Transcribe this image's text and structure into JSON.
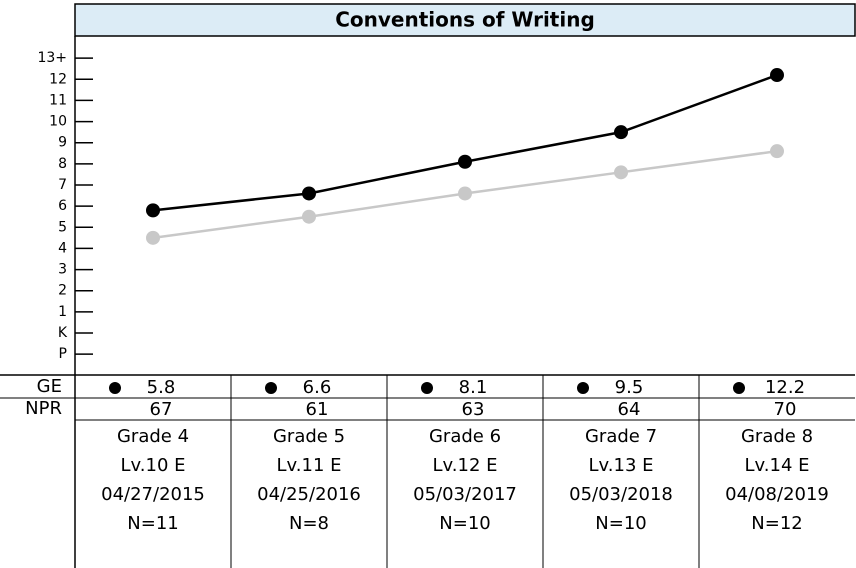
{
  "chart_data": {
    "type": "line",
    "title": "Conventions of Writing",
    "categories": [
      "Grade 4",
      "Grade 5",
      "Grade 6",
      "Grade 7",
      "Grade 8"
    ],
    "series": [
      {
        "color": "#000000",
        "values": [
          5.8,
          6.6,
          8.1,
          9.5,
          12.2
        ]
      },
      {
        "color": "#c8c8c8",
        "values": [
          4.5,
          5.5,
          6.6,
          7.6,
          8.6
        ]
      }
    ],
    "ylim": [
      -1.75,
      14
    ],
    "yticks": [
      {
        "value": -1,
        "label": "P"
      },
      {
        "value": 0,
        "label": "K"
      },
      1,
      2,
      3,
      4,
      5,
      6,
      7,
      8,
      9,
      10,
      11,
      12,
      {
        "value": 13,
        "label": "13+"
      }
    ],
    "row_labels": [
      "GE",
      "NPR"
    ],
    "npr": [
      67,
      61,
      63,
      64,
      70
    ],
    "levels": [
      "Lv.10 E",
      "Lv.11 E",
      "Lv.12 E",
      "Lv.13 E",
      "Lv.14 E"
    ],
    "dates": [
      "04/27/2015",
      "04/25/2016",
      "05/03/2017",
      "05/03/2018",
      "04/08/2019"
    ],
    "counts": [
      "N=11",
      "N=8",
      "N=10",
      "N=10",
      "N=12"
    ]
  }
}
